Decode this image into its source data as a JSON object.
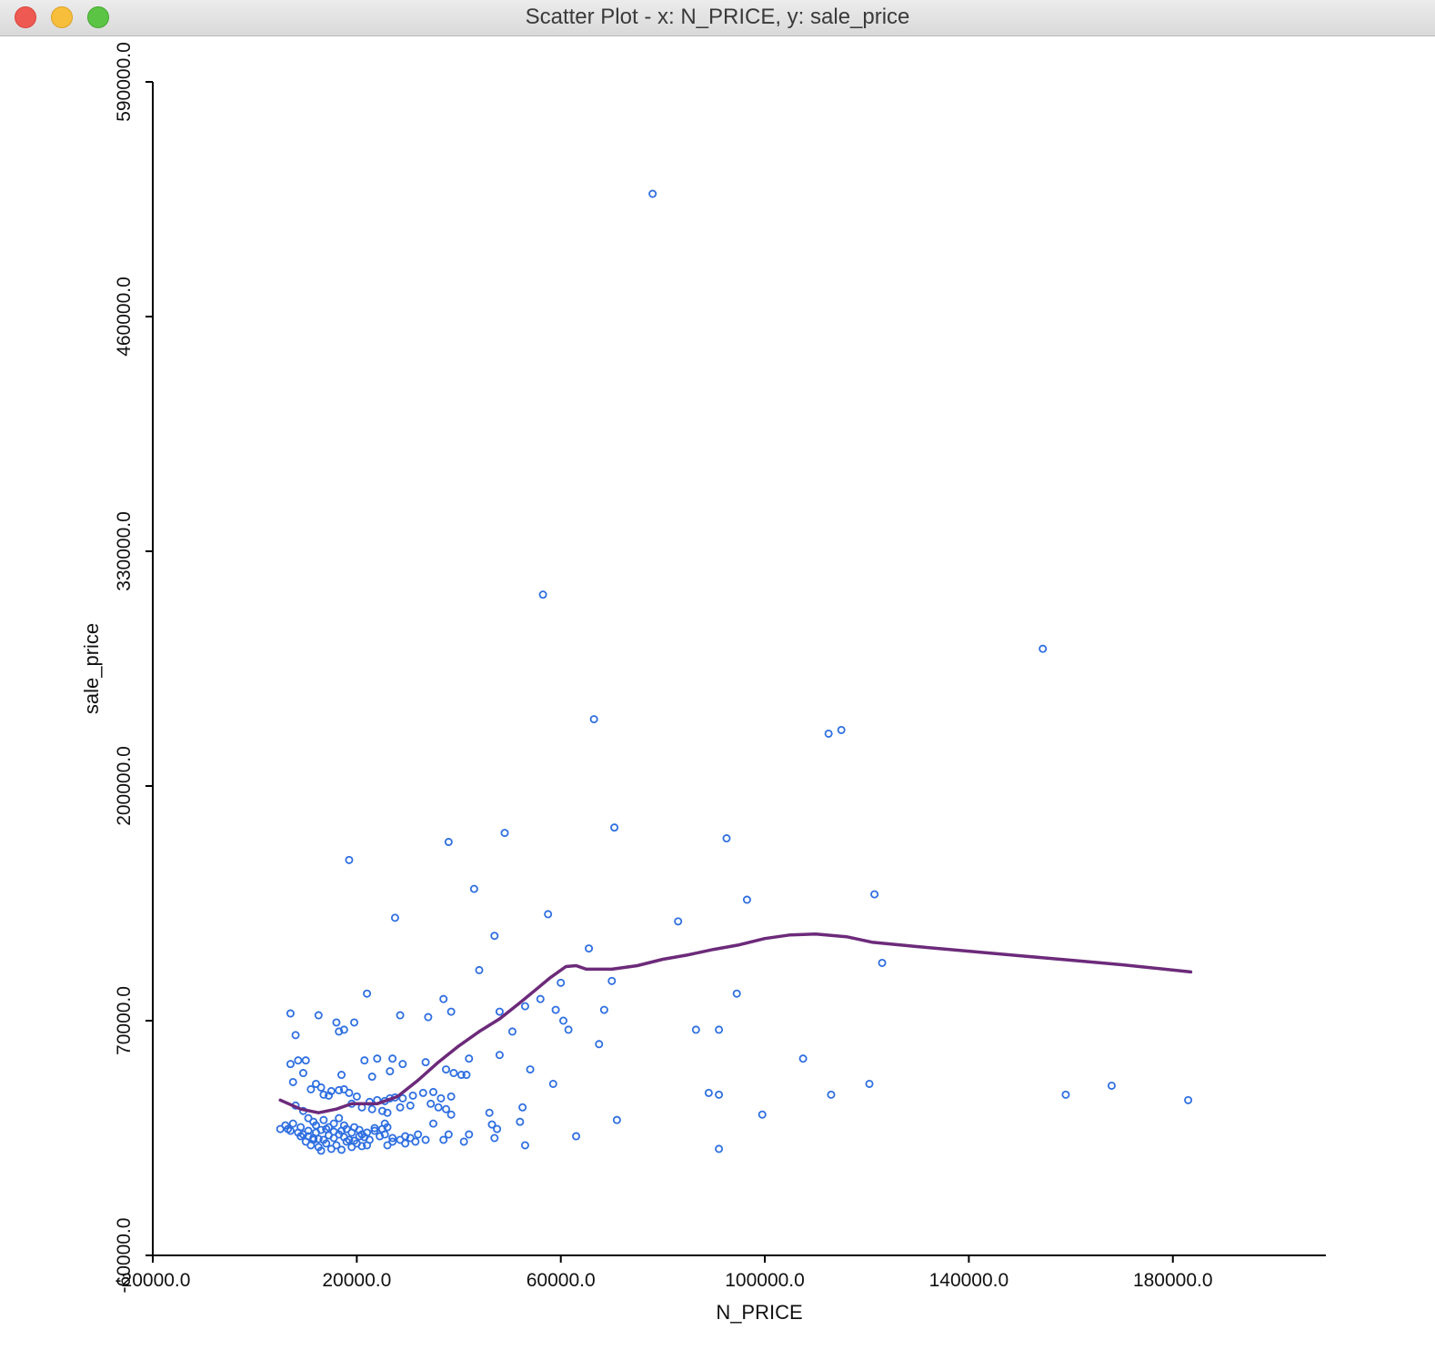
{
  "window": {
    "title": "Scatter Plot - x: N_PRICE, y: sale_price"
  },
  "colors": {
    "points": "#2f6fe0",
    "smoother": "#6c2a7a",
    "axis": "#000000"
  },
  "chart_data": {
    "type": "scatter",
    "xlabel": "N_PRICE",
    "ylabel": "sale_price",
    "xlim": [
      -20000,
      210000
    ],
    "ylim": [
      -60000,
      590000
    ],
    "x_ticks": [
      -20000,
      20000,
      60000,
      100000,
      140000,
      180000
    ],
    "y_ticks": [
      -60000,
      70000,
      200000,
      330000,
      460000,
      590000
    ],
    "x_tick_labels": [
      "-20000.0",
      "20000.0",
      "60000.0",
      "100000.0",
      "140000.0",
      "180000.0"
    ],
    "y_tick_labels": [
      "-60000.0",
      "70000.0",
      "200000.0",
      "330000.0",
      "460000.0",
      "590000.0"
    ],
    "grid": false,
    "series": [
      {
        "type": "scatter",
        "points": [
          [
            78000,
            528000
          ],
          [
            56500,
            306000
          ],
          [
            154500,
            276000
          ],
          [
            66500,
            237000
          ],
          [
            112500,
            229000
          ],
          [
            115000,
            231000
          ],
          [
            49000,
            174000
          ],
          [
            38000,
            169000
          ],
          [
            70500,
            177000
          ],
          [
            92500,
            171000
          ],
          [
            18500,
            159000
          ],
          [
            43000,
            143000
          ],
          [
            121500,
            140000
          ],
          [
            96500,
            137000
          ],
          [
            57500,
            129000
          ],
          [
            27500,
            127000
          ],
          [
            83000,
            125000
          ],
          [
            47000,
            117000
          ],
          [
            65500,
            110000
          ],
          [
            123000,
            102000
          ],
          [
            44000,
            98000
          ],
          [
            70000,
            92000
          ],
          [
            60000,
            91000
          ],
          [
            22000,
            85000
          ],
          [
            94500,
            85000
          ],
          [
            37000,
            82000
          ],
          [
            56000,
            82000
          ],
          [
            53000,
            78000
          ],
          [
            68500,
            76000
          ],
          [
            59000,
            76000
          ],
          [
            7000,
            74000
          ],
          [
            12500,
            73000
          ],
          [
            28500,
            73000
          ],
          [
            34000,
            72000
          ],
          [
            38500,
            75000
          ],
          [
            48000,
            75000
          ],
          [
            60500,
            70000
          ],
          [
            16000,
            69000
          ],
          [
            19500,
            69000
          ],
          [
            61500,
            65000
          ],
          [
            86500,
            65000
          ],
          [
            91000,
            65000
          ],
          [
            16500,
            64000
          ],
          [
            17500,
            65000
          ],
          [
            8000,
            62000
          ],
          [
            50500,
            64000
          ],
          [
            67500,
            57000
          ],
          [
            48000,
            51000
          ],
          [
            7000,
            46000
          ],
          [
            8500,
            48000
          ],
          [
            10000,
            48000
          ],
          [
            21500,
            48000
          ],
          [
            24000,
            49000
          ],
          [
            27000,
            49000
          ],
          [
            33500,
            47000
          ],
          [
            42000,
            49000
          ],
          [
            29000,
            46000
          ],
          [
            26500,
            42000
          ],
          [
            54000,
            43000
          ],
          [
            39000,
            41000
          ],
          [
            17000,
            40000
          ],
          [
            23000,
            39000
          ],
          [
            40500,
            40000
          ],
          [
            41500,
            40000
          ],
          [
            107500,
            49000
          ],
          [
            9500,
            41000
          ],
          [
            37500,
            43000
          ],
          [
            58500,
            35000
          ],
          [
            89000,
            30000
          ],
          [
            91000,
            29000
          ],
          [
            113000,
            29000
          ],
          [
            120500,
            35000
          ],
          [
            159000,
            29000
          ],
          [
            168000,
            34000
          ],
          [
            183000,
            26000
          ],
          [
            7500,
            36000
          ],
          [
            12000,
            35000
          ],
          [
            13000,
            33000
          ],
          [
            15000,
            31000
          ],
          [
            16500,
            31500
          ],
          [
            17500,
            32000
          ],
          [
            18500,
            30000
          ],
          [
            20000,
            28000
          ],
          [
            22500,
            25000
          ],
          [
            24000,
            26000
          ],
          [
            25500,
            25500
          ],
          [
            26500,
            27000
          ],
          [
            27500,
            27500
          ],
          [
            29000,
            27000
          ],
          [
            31000,
            28500
          ],
          [
            33000,
            30000
          ],
          [
            35000,
            30500
          ],
          [
            36500,
            27000
          ],
          [
            38500,
            28000
          ],
          [
            11000,
            32000
          ],
          [
            13500,
            29000
          ],
          [
            14500,
            28500
          ],
          [
            19000,
            24000
          ],
          [
            21000,
            22000
          ],
          [
            23000,
            21000
          ],
          [
            25000,
            20000
          ],
          [
            26000,
            19000
          ],
          [
            28500,
            22000
          ],
          [
            30500,
            23000
          ],
          [
            34500,
            24000
          ],
          [
            36000,
            22000
          ],
          [
            37500,
            21000
          ],
          [
            38500,
            18000
          ],
          [
            46000,
            19000
          ],
          [
            52500,
            22000
          ],
          [
            71000,
            15000
          ],
          [
            99500,
            18000
          ],
          [
            8000,
            23000
          ],
          [
            9500,
            20000
          ],
          [
            10500,
            16000
          ],
          [
            11500,
            14000
          ],
          [
            12000,
            12000
          ],
          [
            13500,
            15000
          ],
          [
            14500,
            11000
          ],
          [
            15500,
            13000
          ],
          [
            16500,
            16000
          ],
          [
            17500,
            12000
          ],
          [
            18000,
            10000
          ],
          [
            19500,
            11000
          ],
          [
            20500,
            9500
          ],
          [
            22000,
            8000
          ],
          [
            23500,
            9000
          ],
          [
            25000,
            10000
          ],
          [
            26000,
            11000
          ],
          [
            6500,
            10000
          ],
          [
            7000,
            9000
          ],
          [
            8500,
            8000
          ],
          [
            9500,
            7000
          ],
          [
            10500,
            6000
          ],
          [
            11500,
            5000
          ],
          [
            12500,
            4500
          ],
          [
            13500,
            4000
          ],
          [
            14500,
            6500
          ],
          [
            15500,
            5000
          ],
          [
            16500,
            7000
          ],
          [
            17500,
            5500
          ],
          [
            18500,
            4000
          ],
          [
            19500,
            3500
          ],
          [
            20500,
            6000
          ],
          [
            21500,
            5500
          ],
          [
            22500,
            4000
          ],
          [
            24500,
            6000
          ],
          [
            25500,
            7000
          ],
          [
            27000,
            5000
          ],
          [
            28500,
            4000
          ],
          [
            29500,
            6000
          ],
          [
            30500,
            5000
          ],
          [
            32000,
            7000
          ],
          [
            33500,
            4000
          ],
          [
            37000,
            4000
          ],
          [
            38000,
            7000
          ],
          [
            42000,
            7000
          ],
          [
            47000,
            5000
          ],
          [
            53000,
            1000
          ],
          [
            63000,
            6000
          ],
          [
            91000,
            -1000
          ],
          [
            5000,
            10000
          ],
          [
            6000,
            12000
          ],
          [
            7500,
            13000
          ],
          [
            9000,
            11000
          ],
          [
            10500,
            9000
          ],
          [
            12000,
            8000
          ],
          [
            13000,
            9500
          ],
          [
            14000,
            10000
          ],
          [
            15500,
            8500
          ],
          [
            17000,
            9000
          ],
          [
            19000,
            8000
          ],
          [
            21000,
            7000
          ],
          [
            23500,
            10500
          ],
          [
            25500,
            13000
          ],
          [
            27000,
            3000
          ],
          [
            35000,
            13000
          ],
          [
            46500,
            12500
          ],
          [
            52000,
            14000
          ],
          [
            41000,
            3000
          ],
          [
            47500,
            10000
          ],
          [
            26000,
            1000
          ],
          [
            29500,
            2000
          ],
          [
            31500,
            3000
          ],
          [
            22000,
            1000
          ],
          [
            11500,
            4000
          ],
          [
            12500,
            0
          ],
          [
            14000,
            2000
          ],
          [
            16000,
            1000
          ],
          [
            18000,
            3000
          ],
          [
            20000,
            2000
          ],
          [
            9000,
            6000
          ],
          [
            10000,
            3000
          ],
          [
            11000,
            1000
          ],
          [
            13000,
            -2000
          ],
          [
            15000,
            -1000
          ],
          [
            17000,
            -1500
          ],
          [
            19000,
            0
          ],
          [
            21000,
            500
          ]
        ]
      },
      {
        "type": "line",
        "name": "",
        "points": [
          [
            5000,
            26000
          ],
          [
            9000,
            21000
          ],
          [
            12500,
            19000
          ],
          [
            16000,
            21000
          ],
          [
            19000,
            24000
          ],
          [
            24000,
            24000
          ],
          [
            28000,
            28000
          ],
          [
            32000,
            37000
          ],
          [
            36000,
            47000
          ],
          [
            40000,
            56000
          ],
          [
            44000,
            64000
          ],
          [
            48000,
            71000
          ],
          [
            52000,
            80000
          ],
          [
            55000,
            87000
          ],
          [
            58000,
            94000
          ],
          [
            61000,
            100000
          ],
          [
            63000,
            100500
          ],
          [
            65000,
            98500
          ],
          [
            70000,
            98500
          ],
          [
            75000,
            100500
          ],
          [
            80000,
            104000
          ],
          [
            85000,
            106500
          ],
          [
            90000,
            109500
          ],
          [
            95000,
            112000
          ],
          [
            100000,
            115500
          ],
          [
            105000,
            117500
          ],
          [
            110000,
            118000
          ],
          [
            116000,
            116500
          ],
          [
            121000,
            113500
          ],
          [
            130000,
            111000
          ],
          [
            140000,
            108500
          ],
          [
            150000,
            106000
          ],
          [
            160000,
            103500
          ],
          [
            170000,
            101000
          ],
          [
            183500,
            97000
          ]
        ]
      }
    ]
  }
}
